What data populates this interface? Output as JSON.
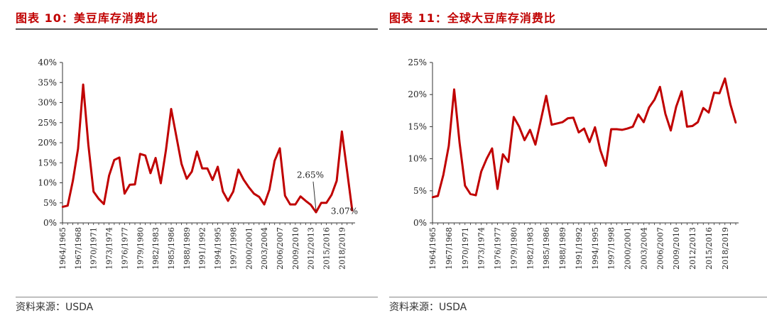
{
  "figures": [
    {
      "title": "图表 10：美豆库存消费比",
      "source": "资料来源：USDA"
    },
    {
      "title": "图表 11：全球大豆库存消费比",
      "source": "资料来源：USDA"
    }
  ],
  "chart_data": [
    {
      "type": "line",
      "title": "图表 10：美豆库存消费比",
      "xlabel": "",
      "ylabel": "",
      "ylim": [
        0,
        40
      ],
      "y_ticks": [
        "0%",
        "5%",
        "10%",
        "15%",
        "20%",
        "25%",
        "30%",
        "35%",
        "40%"
      ],
      "x_tick_labels": [
        "1964/1965",
        "1967/1968",
        "1970/1971",
        "1973/1974",
        "1976/1977",
        "1979/1980",
        "1982/1983",
        "1985/1986",
        "1988/1989",
        "1991/1992",
        "1994/1995",
        "1997/1998",
        "2000/2001",
        "2003/2004",
        "2006/2007",
        "2009/2010",
        "2012/2013",
        "2015/2016",
        "2018/2019"
      ],
      "start_year": 1964,
      "color": "#c00000",
      "series": [
        {
          "values": [
            4.0,
            4.3,
            10.5,
            18.5,
            34.5,
            19.5,
            7.8,
            6.0,
            4.7,
            11.8,
            15.7,
            16.3,
            7.3,
            9.5,
            9.6,
            17.2,
            16.8,
            12.4,
            16.2,
            9.9,
            18.2,
            28.4,
            21.6,
            14.7,
            11.0,
            12.8,
            17.8,
            13.6,
            13.6,
            10.7,
            14.0,
            7.8,
            5.5,
            7.8,
            13.3,
            10.8,
            8.9,
            7.3,
            6.5,
            4.6,
            8.3,
            15.5,
            18.6,
            6.8,
            4.6,
            4.6,
            6.6,
            5.5,
            4.5,
            2.65,
            5.0,
            5.0,
            7.0,
            10.5,
            22.8,
            13.0,
            3.07
          ]
        }
      ],
      "annotations": [
        {
          "text": "2.65%",
          "x_year": "2013/2014",
          "value": 2.65
        },
        {
          "text": "3.07%",
          "x_year": "2020/2021",
          "value": 3.07
        }
      ]
    },
    {
      "type": "line",
      "title": "图表 11：全球大豆库存消费比",
      "xlabel": "",
      "ylabel": "",
      "ylim": [
        0,
        25
      ],
      "y_ticks": [
        "0%",
        "5%",
        "10%",
        "15%",
        "20%",
        "25%"
      ],
      "x_tick_labels": [
        "1964/1965",
        "1967/1968",
        "1970/1971",
        "1973/1974",
        "1976/1977",
        "1979/1980",
        "1982/1983",
        "1985/1986",
        "1988/1989",
        "1991/1992",
        "1994/1995",
        "1997/1998",
        "2000/2001",
        "2003/2004",
        "2006/2007",
        "2009/2010",
        "2012/2013",
        "2015/2016",
        "2018/2019"
      ],
      "start_year": 1964,
      "color": "#c00000",
      "series": [
        {
          "values": [
            4.0,
            4.2,
            7.5,
            12.0,
            20.8,
            12.5,
            5.8,
            4.5,
            4.3,
            8.0,
            10.0,
            11.6,
            5.3,
            10.7,
            9.5,
            16.5,
            15.0,
            12.9,
            14.5,
            12.2,
            16.0,
            19.8,
            15.3,
            15.5,
            15.7,
            16.3,
            16.4,
            14.1,
            14.7,
            12.6,
            14.9,
            11.3,
            8.9,
            14.6,
            14.6,
            14.5,
            14.7,
            15.0,
            16.9,
            15.7,
            18.0,
            19.2,
            21.2,
            17.0,
            14.4,
            18.1,
            20.5,
            15.0,
            15.1,
            15.7,
            17.9,
            17.2,
            20.3,
            20.2,
            22.5,
            18.5,
            15.6
          ]
        }
      ]
    }
  ]
}
